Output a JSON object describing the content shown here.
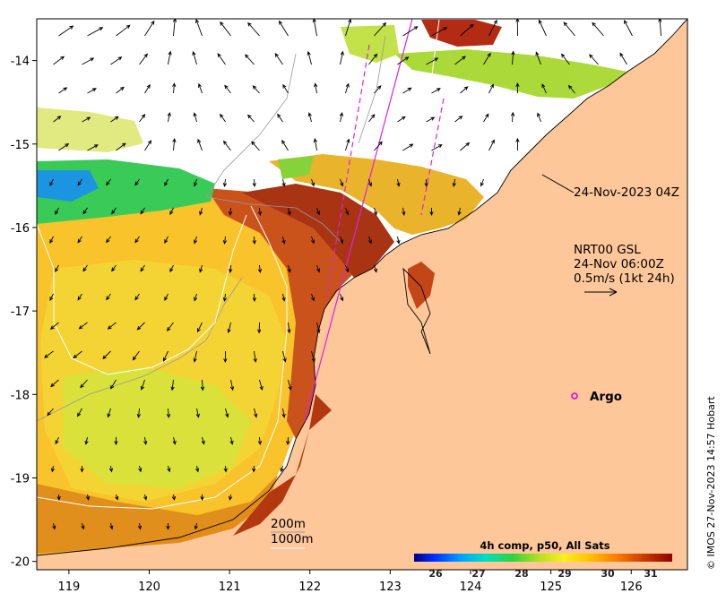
{
  "map": {
    "timestamp_label": "24-Nov-2023 04Z",
    "current_source": "NRT00 GSL",
    "current_time": "24-Nov 06:00Z",
    "current_scale": "0.5m/s (1kt 24h)",
    "argo_label": "Argo",
    "contour_200": "200m",
    "contour_1000": "1000m",
    "credit": "© IMOS 27-Nov-2023 14:57 Hobart",
    "land_color": "#fdc79a",
    "argo_color": "#e000e0",
    "track_color": "#e020e0"
  },
  "axes": {
    "x_ticks": [
      "119",
      "120",
      "121",
      "122",
      "123",
      "124",
      "125",
      "126"
    ],
    "y_ticks": [
      "-14",
      "-15",
      "-16",
      "-17",
      "-18",
      "-19",
      "-20"
    ],
    "lon_range": [
      118.6,
      126.7
    ],
    "lat_range": [
      -20.1,
      -13.5
    ]
  },
  "colorbar": {
    "title": "4h comp, p50, All Sats",
    "ticks": [
      "26",
      "27",
      "28",
      "29",
      "30",
      "31"
    ],
    "range": [
      25.5,
      31.5
    ],
    "colors": [
      "#000080",
      "#0040ff",
      "#00a0ff",
      "#00e0c0",
      "#40d040",
      "#a0e020",
      "#f0f020",
      "#ffc000",
      "#ff8000",
      "#e05000",
      "#c02000",
      "#900000"
    ]
  }
}
